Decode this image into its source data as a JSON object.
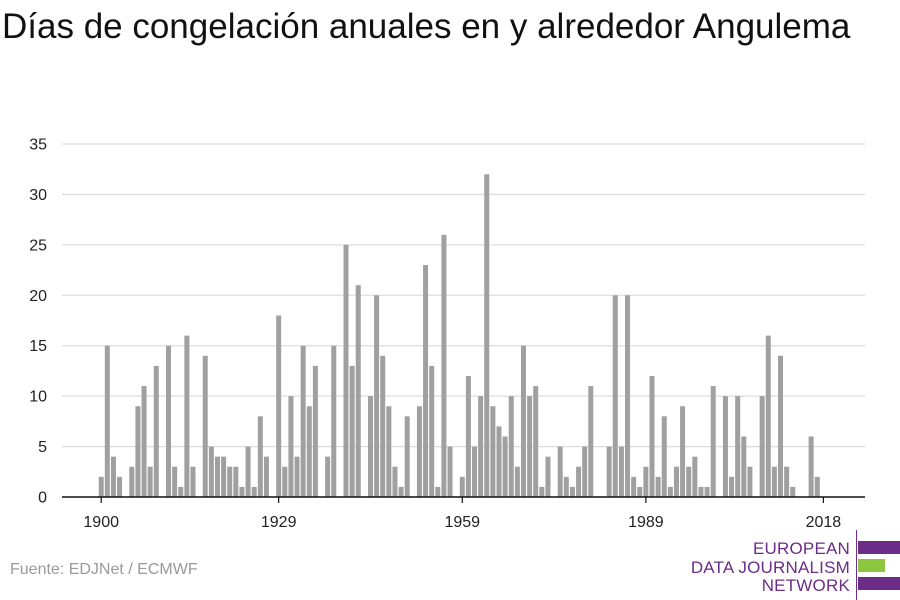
{
  "chart_data": {
    "type": "bar",
    "title": "Días de congelación anuales en y alrededor Angulema",
    "xlabel": "",
    "ylabel": "",
    "x_start": 1900,
    "x_end": 2020,
    "x_ticks": [
      1900,
      1929,
      1959,
      1989,
      2018
    ],
    "y_ticks": [
      0,
      5,
      10,
      15,
      20,
      25,
      30,
      35
    ],
    "ylim": [
      0,
      35
    ],
    "grid": true,
    "bar_color": "#a0a0a0",
    "values": [
      2,
      15,
      4,
      2,
      0,
      3,
      9,
      11,
      3,
      13,
      0,
      15,
      3,
      1,
      16,
      3,
      0,
      14,
      5,
      4,
      4,
      3,
      3,
      1,
      5,
      1,
      8,
      4,
      0,
      18,
      3,
      10,
      4,
      15,
      9,
      13,
      0,
      4,
      15,
      0,
      25,
      13,
      21,
      0,
      10,
      20,
      14,
      9,
      3,
      1,
      8,
      0,
      9,
      23,
      13,
      1,
      26,
      5,
      0,
      2,
      12,
      5,
      10,
      32,
      9,
      7,
      6,
      10,
      3,
      15,
      10,
      11,
      1,
      4,
      0,
      5,
      2,
      1,
      3,
      5,
      11,
      0,
      0,
      5,
      20,
      5,
      20,
      2,
      1,
      3,
      12,
      2,
      8,
      1,
      3,
      9,
      3,
      4,
      1,
      1,
      11,
      0,
      10,
      2,
      10,
      6,
      3,
      0,
      10,
      16,
      3,
      14,
      3,
      1,
      0,
      0,
      6,
      2,
      0,
      0
    ]
  },
  "source": "Fuente: EDJNet / ECMWF",
  "logo": {
    "line1": "EUROPEAN",
    "line2": "DATA JOURNALISM",
    "line3": "NETWORK",
    "purple": "#6b2d87",
    "green": "#8dc63f"
  }
}
